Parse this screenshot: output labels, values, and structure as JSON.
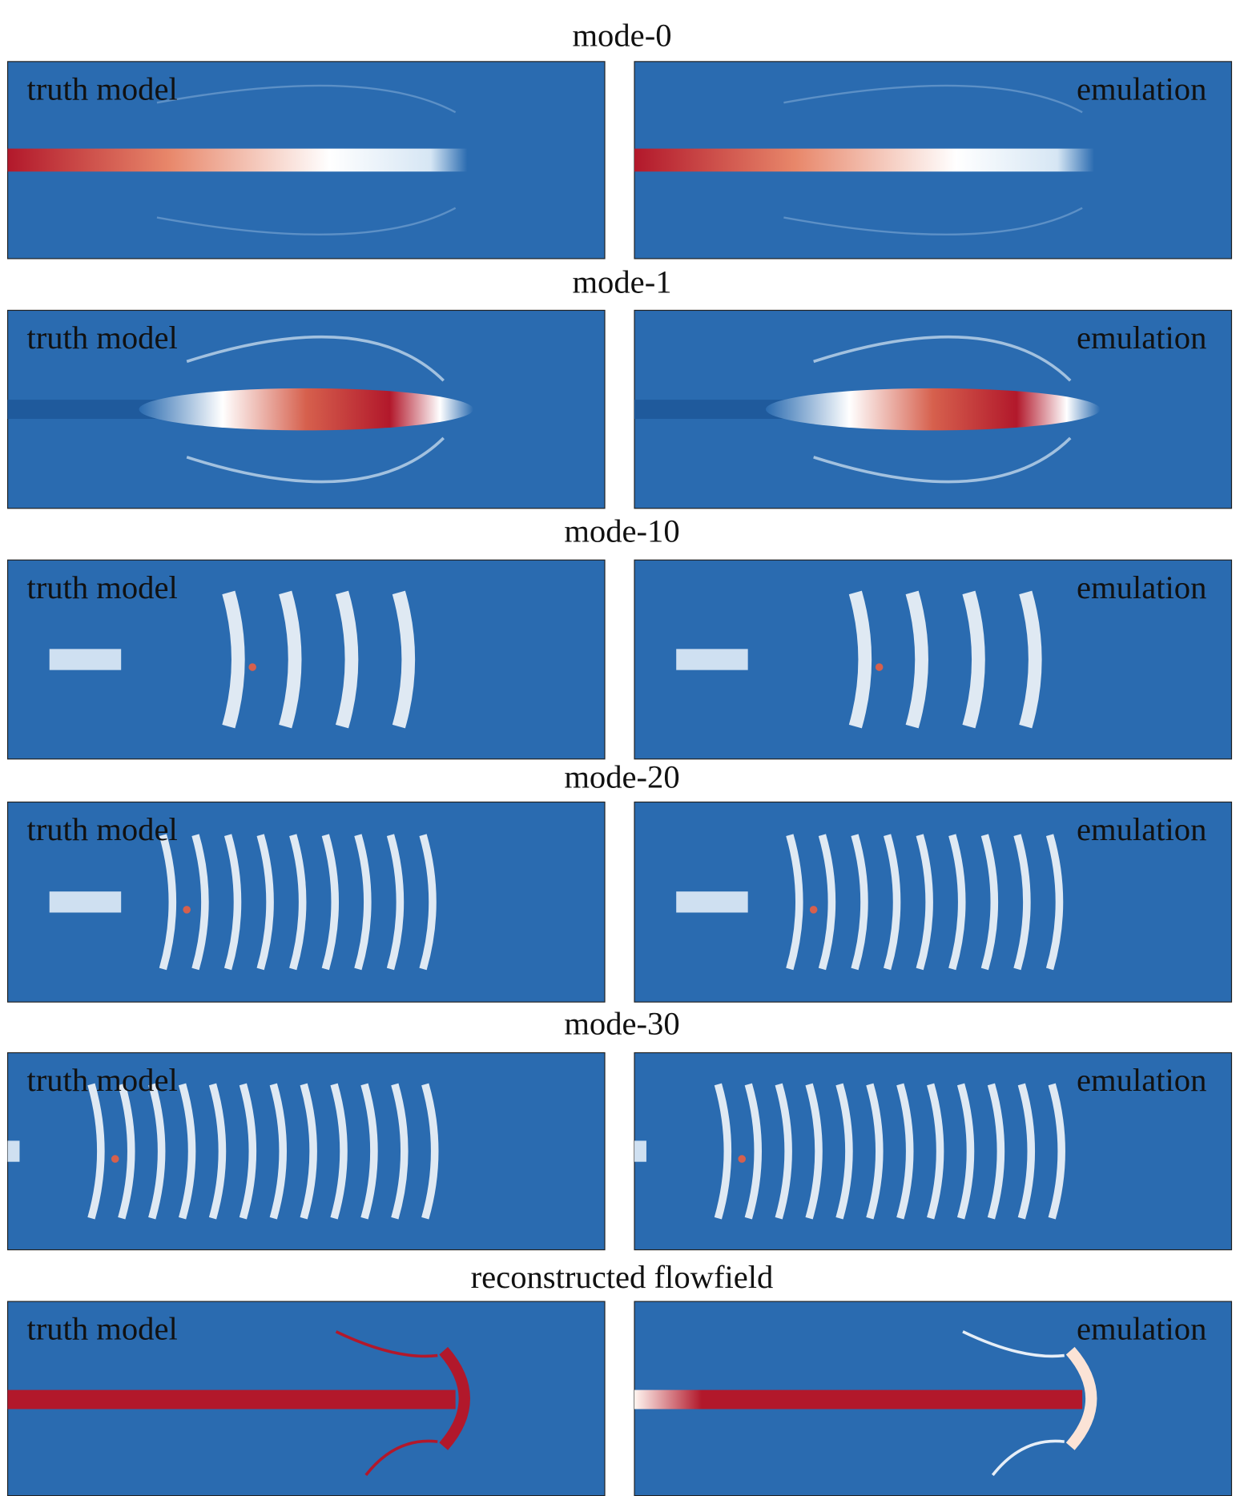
{
  "panels": [
    {
      "title": "mode-0",
      "left_label": "truth model",
      "right_label": "emulation"
    },
    {
      "title": "mode-1",
      "left_label": "truth model",
      "right_label": "emulation"
    },
    {
      "title": "mode-10",
      "left_label": "truth model",
      "right_label": "emulation"
    },
    {
      "title": "mode-20",
      "left_label": "truth model",
      "right_label": "emulation"
    },
    {
      "title": "mode-30",
      "left_label": "truth model",
      "right_label": "emulation"
    },
    {
      "title": "reconstructed flowfield",
      "left_label": "truth model",
      "right_label": "emulation"
    }
  ]
}
